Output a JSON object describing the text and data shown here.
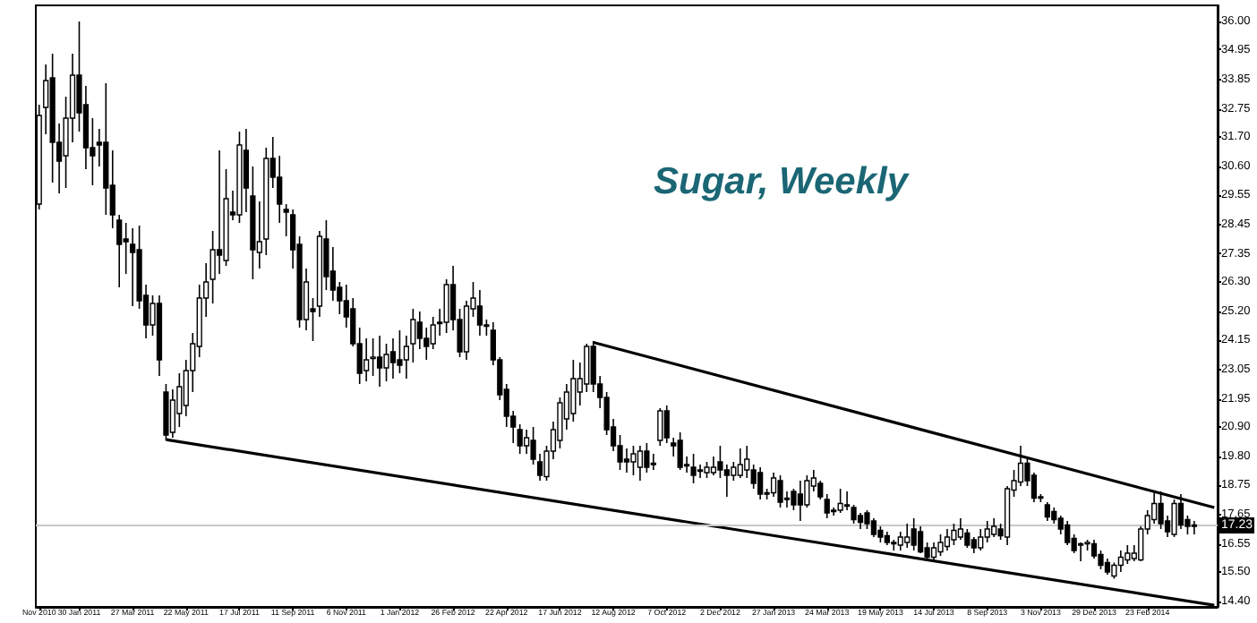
{
  "chart_data": {
    "type": "candlestick",
    "title": "Sugar, Weekly",
    "categories": [
      "Nov 2010",
      null,
      null,
      null,
      null,
      null,
      "30 Jan 2011",
      null,
      null,
      null,
      null,
      null,
      null,
      null,
      "27 Mar 2011",
      null,
      null,
      null,
      null,
      null,
      null,
      null,
      "22 May 2011",
      null,
      null,
      null,
      null,
      null,
      null,
      null,
      "17 Jul 2011",
      null,
      null,
      null,
      null,
      null,
      null,
      null,
      "11 Sep 2011",
      null,
      null,
      null,
      null,
      null,
      null,
      null,
      "6 Nov 2011",
      null,
      null,
      null,
      null,
      null,
      null,
      null,
      "1 Jan 2012",
      null,
      null,
      null,
      null,
      null,
      null,
      null,
      "26 Feb 2012",
      null,
      null,
      null,
      null,
      null,
      null,
      null,
      "22 Apr 2012",
      null,
      null,
      null,
      null,
      null,
      null,
      null,
      "17 Jun 2012",
      null,
      null,
      null,
      null,
      null,
      null,
      null,
      "12 Aug 2012",
      null,
      null,
      null,
      null,
      null,
      null,
      null,
      "7 Oct 2012",
      null,
      null,
      null,
      null,
      null,
      null,
      null,
      "2 Dec 2012",
      null,
      null,
      null,
      null,
      null,
      null,
      null,
      "27 Jan 2013",
      null,
      null,
      null,
      null,
      null,
      null,
      null,
      "24 Mar 2013",
      null,
      null,
      null,
      null,
      null,
      null,
      null,
      "19 May 2013",
      null,
      null,
      null,
      null,
      null,
      null,
      null,
      "14 Jul 2013",
      null,
      null,
      null,
      null,
      null,
      null,
      null,
      "8 Sep 2013",
      null,
      null,
      null,
      null,
      null,
      null,
      null,
      "3 Nov 2013",
      null,
      null,
      null,
      null,
      null,
      null,
      null,
      "29 Dec 2013",
      null,
      null,
      null,
      null,
      null,
      null,
      null,
      "23 Feb 2014",
      null,
      null,
      null,
      null,
      null,
      null,
      null,
      null,
      null,
      null
    ],
    "ohlc": [
      [
        29.2,
        32.9,
        29.0,
        32.5
      ],
      [
        32.8,
        34.4,
        31.8,
        33.8
      ],
      [
        33.9,
        34.8,
        30.0,
        31.5
      ],
      [
        31.5,
        32.2,
        29.6,
        30.8
      ],
      [
        31.0,
        33.2,
        29.8,
        32.4
      ],
      [
        32.4,
        34.8,
        31.5,
        34.0
      ],
      [
        34.0,
        36.0,
        31.9,
        32.6
      ],
      [
        32.9,
        33.6,
        30.5,
        31.3
      ],
      [
        31.3,
        32.4,
        29.9,
        31.0
      ],
      [
        31.5,
        32.0,
        30.6,
        31.4
      ],
      [
        31.5,
        33.7,
        28.8,
        29.8
      ],
      [
        29.9,
        31.2,
        28.3,
        28.8
      ],
      [
        28.6,
        28.8,
        26.1,
        27.7
      ],
      [
        27.9,
        28.5,
        26.6,
        27.8
      ],
      [
        27.7,
        28.3,
        25.4,
        27.4
      ],
      [
        27.5,
        28.4,
        25.3,
        25.6
      ],
      [
        25.8,
        26.2,
        24.2,
        24.7
      ],
      [
        24.7,
        25.8,
        24.3,
        25.5
      ],
      [
        25.5,
        25.8,
        22.8,
        23.4
      ],
      [
        22.2,
        22.5,
        20.4,
        20.6
      ],
      [
        20.7,
        22.3,
        20.5,
        21.9
      ],
      [
        21.4,
        22.9,
        20.9,
        22.4
      ],
      [
        21.7,
        23.4,
        21.3,
        23.0
      ],
      [
        23.0,
        24.4,
        22.2,
        24.0
      ],
      [
        23.9,
        26.2,
        23.5,
        25.7
      ],
      [
        25.7,
        27.0,
        25.0,
        26.3
      ],
      [
        26.4,
        28.2,
        25.5,
        27.5
      ],
      [
        27.5,
        31.2,
        26.6,
        27.3
      ],
      [
        27.1,
        30.5,
        26.9,
        29.4
      ],
      [
        28.9,
        29.7,
        28.6,
        28.8
      ],
      [
        28.8,
        31.9,
        28.5,
        31.4
      ],
      [
        31.2,
        32.0,
        28.9,
        29.8
      ],
      [
        29.5,
        30.6,
        26.4,
        27.5
      ],
      [
        27.4,
        29.3,
        26.8,
        27.8
      ],
      [
        27.9,
        31.3,
        27.3,
        30.9
      ],
      [
        30.9,
        31.7,
        29.8,
        30.2
      ],
      [
        30.2,
        31.0,
        28.5,
        29.2
      ],
      [
        29.0,
        29.2,
        28.0,
        28.9
      ],
      [
        28.8,
        29.0,
        26.8,
        27.5
      ],
      [
        27.7,
        28.0,
        24.6,
        24.9
      ],
      [
        24.9,
        26.8,
        24.5,
        26.3
      ],
      [
        25.3,
        25.7,
        24.1,
        25.2
      ],
      [
        25.4,
        28.2,
        25.0,
        28.0
      ],
      [
        27.9,
        28.6,
        26.0,
        26.5
      ],
      [
        26.7,
        27.6,
        25.6,
        26.0
      ],
      [
        26.1,
        26.3,
        25.1,
        25.6
      ],
      [
        25.6,
        26.2,
        24.6,
        25.0
      ],
      [
        25.3,
        25.7,
        23.9,
        24.0
      ],
      [
        24.0,
        24.6,
        22.5,
        22.9
      ],
      [
        23.0,
        24.2,
        22.6,
        23.4
      ],
      [
        23.5,
        24.2,
        22.8,
        23.5
      ],
      [
        23.5,
        24.3,
        22.4,
        23.1
      ],
      [
        23.1,
        24.0,
        22.6,
        23.6
      ],
      [
        23.7,
        24.2,
        22.7,
        23.3
      ],
      [
        23.4,
        24.5,
        22.9,
        23.2
      ],
      [
        23.4,
        24.3,
        22.7,
        23.9
      ],
      [
        24.0,
        25.3,
        23.3,
        24.9
      ],
      [
        24.8,
        25.2,
        23.8,
        24.2
      ],
      [
        24.2,
        24.6,
        23.4,
        23.9
      ],
      [
        24.0,
        25.0,
        23.8,
        24.7
      ],
      [
        24.8,
        25.3,
        24.3,
        24.75
      ],
      [
        24.8,
        26.4,
        24.4,
        26.2
      ],
      [
        26.2,
        26.9,
        24.5,
        24.9
      ],
      [
        24.9,
        25.3,
        23.5,
        23.7
      ],
      [
        23.7,
        25.6,
        23.4,
        25.4
      ],
      [
        25.3,
        26.3,
        25.0,
        25.7
      ],
      [
        25.4,
        26.0,
        24.3,
        24.7
      ],
      [
        24.7,
        24.9,
        24.3,
        24.65
      ],
      [
        24.5,
        24.8,
        23.2,
        23.4
      ],
      [
        23.4,
        23.5,
        21.9,
        22.1
      ],
      [
        22.3,
        22.5,
        20.9,
        21.3
      ],
      [
        21.3,
        21.5,
        20.3,
        20.9
      ],
      [
        20.8,
        21.0,
        19.9,
        20.2
      ],
      [
        20.2,
        20.8,
        19.9,
        20.5
      ],
      [
        20.4,
        20.9,
        19.5,
        19.7
      ],
      [
        19.6,
        19.9,
        18.9,
        19.1
      ],
      [
        19.05,
        20.2,
        18.9,
        20.0
      ],
      [
        20.0,
        21.1,
        19.7,
        20.8
      ],
      [
        20.4,
        22.0,
        20.1,
        21.8
      ],
      [
        21.2,
        22.5,
        20.8,
        22.2
      ],
      [
        21.4,
        23.4,
        21.1,
        22.7
      ],
      [
        22.2,
        23.3,
        21.7,
        22.7
      ],
      [
        22.5,
        24.0,
        22.2,
        23.9
      ],
      [
        23.9,
        24.1,
        22.2,
        22.5
      ],
      [
        22.5,
        22.8,
        21.6,
        22.0
      ],
      [
        22.0,
        22.2,
        20.6,
        20.8
      ],
      [
        20.9,
        21.2,
        20.0,
        20.2
      ],
      [
        20.2,
        20.6,
        19.3,
        19.6
      ],
      [
        19.7,
        20.1,
        19.2,
        19.6
      ],
      [
        19.6,
        20.2,
        19.1,
        19.9
      ],
      [
        19.4,
        20.2,
        18.9,
        20.0
      ],
      [
        20.0,
        20.3,
        19.2,
        19.4
      ],
      [
        19.55,
        19.9,
        19.3,
        19.5
      ],
      [
        20.4,
        21.6,
        20.2,
        21.5
      ],
      [
        21.5,
        21.7,
        20.3,
        20.5
      ],
      [
        20.3,
        20.5,
        19.8,
        20.2
      ],
      [
        20.4,
        20.7,
        19.3,
        19.4
      ],
      [
        19.5,
        19.8,
        19.2,
        19.45
      ],
      [
        19.4,
        19.9,
        18.8,
        19.1
      ],
      [
        19.3,
        19.5,
        19.0,
        19.25
      ],
      [
        19.2,
        19.6,
        19.0,
        19.4
      ],
      [
        19.2,
        19.8,
        19.1,
        19.4
      ],
      [
        19.6,
        20.2,
        19.0,
        19.3
      ],
      [
        19.3,
        19.5,
        18.3,
        19.1
      ],
      [
        19.1,
        19.6,
        18.9,
        19.4
      ],
      [
        19.1,
        20.1,
        19.0,
        19.5
      ],
      [
        19.3,
        20.2,
        19.0,
        19.7
      ],
      [
        19.3,
        19.5,
        18.6,
        18.8
      ],
      [
        19.2,
        19.4,
        18.2,
        18.4
      ],
      [
        18.45,
        18.6,
        18.2,
        18.4
      ],
      [
        18.45,
        19.2,
        18.3,
        19.0
      ],
      [
        18.9,
        19.1,
        17.9,
        18.1
      ],
      [
        18.25,
        18.5,
        17.9,
        18.2
      ],
      [
        18.5,
        18.6,
        17.8,
        18.0
      ],
      [
        18.4,
        18.9,
        17.4,
        18.0
      ],
      [
        18.0,
        19.1,
        17.9,
        18.9
      ],
      [
        18.7,
        19.3,
        18.5,
        19.0
      ],
      [
        18.8,
        18.9,
        18.2,
        18.3
      ],
      [
        18.2,
        18.4,
        17.5,
        17.7
      ],
      [
        17.8,
        17.9,
        17.6,
        17.75
      ],
      [
        17.8,
        18.6,
        17.7,
        18.05
      ],
      [
        18.0,
        18.5,
        17.8,
        17.95
      ],
      [
        17.9,
        18.0,
        17.3,
        17.45
      ],
      [
        17.6,
        17.7,
        17.1,
        17.35
      ],
      [
        17.7,
        17.8,
        17.1,
        17.3
      ],
      [
        17.4,
        17.5,
        16.8,
        16.9
      ],
      [
        17.05,
        17.2,
        16.6,
        16.8
      ],
      [
        16.85,
        17.0,
        16.5,
        16.6
      ],
      [
        16.6,
        16.7,
        16.3,
        16.55
      ],
      [
        16.5,
        17.0,
        16.3,
        16.8
      ],
      [
        16.6,
        17.3,
        16.4,
        16.8
      ],
      [
        17.1,
        17.5,
        16.3,
        16.5
      ],
      [
        17.0,
        17.2,
        16.2,
        16.25
      ],
      [
        16.4,
        16.6,
        15.9,
        16.05
      ],
      [
        16.05,
        16.6,
        15.9,
        16.4
      ],
      [
        16.25,
        16.9,
        16.1,
        16.6
      ],
      [
        16.45,
        17.1,
        16.3,
        16.8
      ],
      [
        16.7,
        17.3,
        16.5,
        17.05
      ],
      [
        16.8,
        17.5,
        16.7,
        17.1
      ],
      [
        16.95,
        17.1,
        16.4,
        16.5
      ],
      [
        16.7,
        16.8,
        16.2,
        16.4
      ],
      [
        16.4,
        17.1,
        16.3,
        16.8
      ],
      [
        16.8,
        17.4,
        16.6,
        17.1
      ],
      [
        16.9,
        17.5,
        16.8,
        17.2
      ],
      [
        17.1,
        17.3,
        16.7,
        16.85
      ],
      [
        16.8,
        18.7,
        16.5,
        18.6
      ],
      [
        18.55,
        19.3,
        18.3,
        18.9
      ],
      [
        18.85,
        20.2,
        18.7,
        19.55
      ],
      [
        19.55,
        19.7,
        18.7,
        18.9
      ],
      [
        19.1,
        19.2,
        18.1,
        18.25
      ],
      [
        18.3,
        18.4,
        18.1,
        18.25
      ],
      [
        18.0,
        18.1,
        17.4,
        17.55
      ],
      [
        17.75,
        17.9,
        17.3,
        17.45
      ],
      [
        17.5,
        17.6,
        16.9,
        17.1
      ],
      [
        17.25,
        17.4,
        16.5,
        16.6
      ],
      [
        16.75,
        16.9,
        16.2,
        16.3
      ],
      [
        16.55,
        16.6,
        15.9,
        16.5
      ],
      [
        16.55,
        16.7,
        16.3,
        16.6
      ],
      [
        16.55,
        16.7,
        16.0,
        16.1
      ],
      [
        16.15,
        16.3,
        15.6,
        15.75
      ],
      [
        15.85,
        16.0,
        15.4,
        15.5
      ],
      [
        15.35,
        15.85,
        15.25,
        15.75
      ],
      [
        15.75,
        16.3,
        15.5,
        16.05
      ],
      [
        15.95,
        16.5,
        15.8,
        16.2
      ],
      [
        16.0,
        16.5,
        15.9,
        16.2
      ],
      [
        15.95,
        17.2,
        15.9,
        17.1
      ],
      [
        17.1,
        17.8,
        16.9,
        17.6
      ],
      [
        17.45,
        18.45,
        17.3,
        18.05
      ],
      [
        18.05,
        18.5,
        17.1,
        17.3
      ],
      [
        17.4,
        17.6,
        16.8,
        17.0
      ],
      [
        16.9,
        18.2,
        16.8,
        18.05
      ],
      [
        18.05,
        18.4,
        17.1,
        17.25
      ],
      [
        17.45,
        17.6,
        16.9,
        17.2
      ],
      [
        17.25,
        17.4,
        16.9,
        17.23
      ],
      null,
      null,
      null
    ],
    "series": [
      {
        "type": "line",
        "color": "#000000",
        "values": [
          null,
          null,
          null,
          null,
          null,
          null,
          null,
          null,
          null,
          null,
          null,
          null,
          null,
          null,
          null,
          null,
          null,
          null,
          null,
          20.43,
          null,
          null,
          null,
          null,
          null,
          null,
          null,
          null,
          null,
          null,
          null,
          null,
          null,
          null,
          null,
          null,
          null,
          null,
          null,
          null,
          null,
          null,
          null,
          null,
          null,
          null,
          null,
          null,
          null,
          null,
          null,
          null,
          null,
          null,
          null,
          null,
          null,
          null,
          null,
          null,
          null,
          null,
          null,
          null,
          null,
          null,
          null,
          null,
          null,
          null,
          null,
          null,
          null,
          null,
          null,
          null,
          null,
          null,
          null,
          null,
          null,
          null,
          null,
          null,
          null,
          null,
          null,
          null,
          null,
          null,
          null,
          null,
          null,
          null,
          null,
          null,
          null,
          null,
          null,
          null,
          null,
          null,
          null,
          null,
          null,
          null,
          null,
          null,
          null,
          null,
          null,
          null,
          null,
          null,
          null,
          null,
          null,
          null,
          null,
          null,
          null,
          null,
          null,
          null,
          null,
          null,
          null,
          null,
          null,
          null,
          null,
          null,
          null,
          null,
          null,
          null,
          null,
          null,
          null,
          null,
          null,
          null,
          null,
          null,
          null,
          null,
          null,
          null,
          null,
          null,
          null,
          null,
          null,
          null,
          null,
          null,
          null,
          null,
          null,
          null,
          null,
          null,
          null,
          null,
          null,
          null,
          null,
          null,
          null,
          null,
          null,
          null,
          null,
          null,
          null,
          null,
          14.26
        ]
      },
      {
        "type": "line",
        "color": "#000000",
        "values": [
          null,
          null,
          null,
          null,
          null,
          null,
          null,
          null,
          null,
          null,
          null,
          null,
          null,
          null,
          null,
          null,
          null,
          null,
          null,
          null,
          null,
          null,
          null,
          null,
          null,
          null,
          null,
          null,
          null,
          null,
          null,
          null,
          null,
          null,
          null,
          null,
          null,
          null,
          null,
          null,
          null,
          null,
          null,
          null,
          null,
          null,
          null,
          null,
          null,
          null,
          null,
          null,
          null,
          null,
          null,
          null,
          null,
          null,
          null,
          null,
          null,
          null,
          null,
          null,
          null,
          null,
          null,
          null,
          null,
          null,
          null,
          null,
          null,
          null,
          null,
          null,
          null,
          null,
          null,
          null,
          null,
          null,
          null,
          24.05,
          null,
          null,
          null,
          null,
          null,
          null,
          null,
          null,
          null,
          null,
          null,
          null,
          null,
          null,
          null,
          null,
          null,
          null,
          null,
          null,
          null,
          null,
          null,
          null,
          null,
          null,
          null,
          null,
          null,
          null,
          null,
          null,
          null,
          null,
          null,
          null,
          null,
          null,
          null,
          null,
          null,
          null,
          null,
          null,
          null,
          null,
          null,
          null,
          null,
          null,
          null,
          null,
          null,
          null,
          null,
          null,
          null,
          null,
          null,
          null,
          null,
          null,
          null,
          null,
          null,
          null,
          null,
          null,
          null,
          null,
          null,
          null,
          null,
          null,
          null,
          null,
          null,
          null,
          null,
          null,
          null,
          null,
          null,
          null,
          null,
          null,
          null,
          null,
          null,
          null,
          null,
          null,
          17.9
        ]
      }
    ],
    "ylim": [
      14.2,
      36.6
    ],
    "yticks": [
      {
        "value": 36,
        "label": "36.00"
      },
      {
        "value": 34.95,
        "label": "34.95"
      },
      {
        "value": 33.85,
        "label": "33.85"
      },
      {
        "value": 32.75,
        "label": "32.75"
      },
      {
        "value": 31.7,
        "label": "31.70"
      },
      {
        "value": 30.6,
        "label": "30.60"
      },
      {
        "value": 29.55,
        "label": "29.55"
      },
      {
        "value": 28.45,
        "label": "28.45"
      },
      {
        "value": 27.35,
        "label": "27.35"
      },
      {
        "value": 26.3,
        "label": "26.30"
      },
      {
        "value": 25.2,
        "label": "25.20"
      },
      {
        "value": 24.15,
        "label": "24.15"
      },
      {
        "value": 23.05,
        "label": "23.05"
      },
      {
        "value": 21.95,
        "label": "21.95"
      },
      {
        "value": 20.9,
        "label": "20.90"
      },
      {
        "value": 19.8,
        "label": "19.80"
      },
      {
        "value": 18.75,
        "label": "18.75"
      },
      {
        "value": 17.65,
        "label": "17.65"
      },
      {
        "value": 16.55,
        "label": "16.55"
      },
      {
        "value": 15.5,
        "label": "15.50"
      },
      {
        "value": 14.4,
        "label": "14.40"
      }
    ],
    "ref_lines": [
      {
        "axis": "y",
        "value": 17.23,
        "label": "17.23",
        "color": "#c8c8c8"
      }
    ],
    "grid": false
  }
}
